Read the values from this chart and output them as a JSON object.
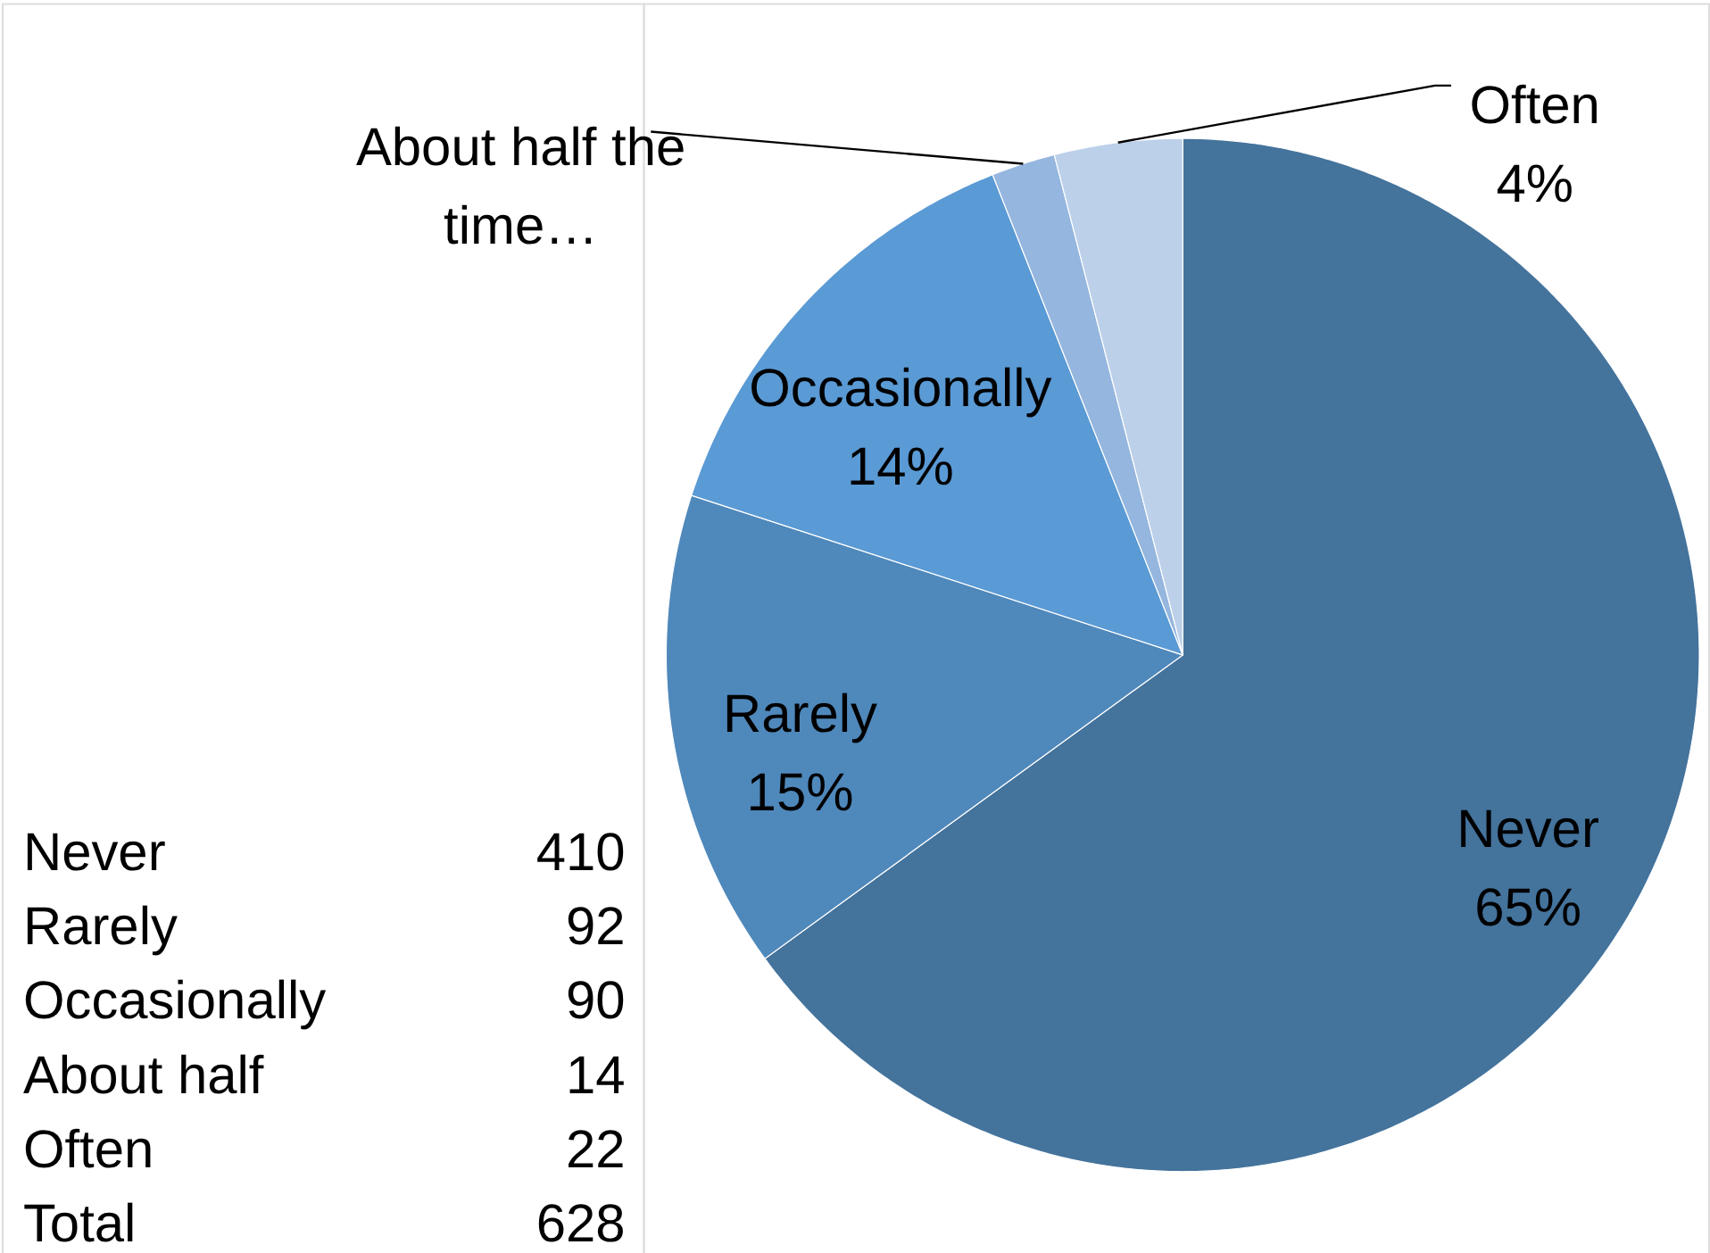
{
  "chart_data": [
    {
      "type": "other",
      "categories": [
        "Never",
        "Rarely",
        "Occasionally",
        "About half",
        "Often",
        "Total"
      ],
      "values": [
        410,
        92,
        90,
        14,
        22,
        628
      ],
      "data_labels": true
    },
    {
      "type": "pie",
      "categories": [
        "Never",
        "Rarely",
        "Occasionally",
        "About half the time…",
        "Often"
      ],
      "values": [
        65,
        15,
        14,
        2,
        4
      ],
      "colors": [
        "#44739c",
        "#4f88bb",
        "#5a9ad5",
        "#95b6de",
        "#bcd0ea"
      ],
      "value_labels": [
        "65%",
        "15%",
        "14%",
        null,
        "4%"
      ]
    }
  ]
}
